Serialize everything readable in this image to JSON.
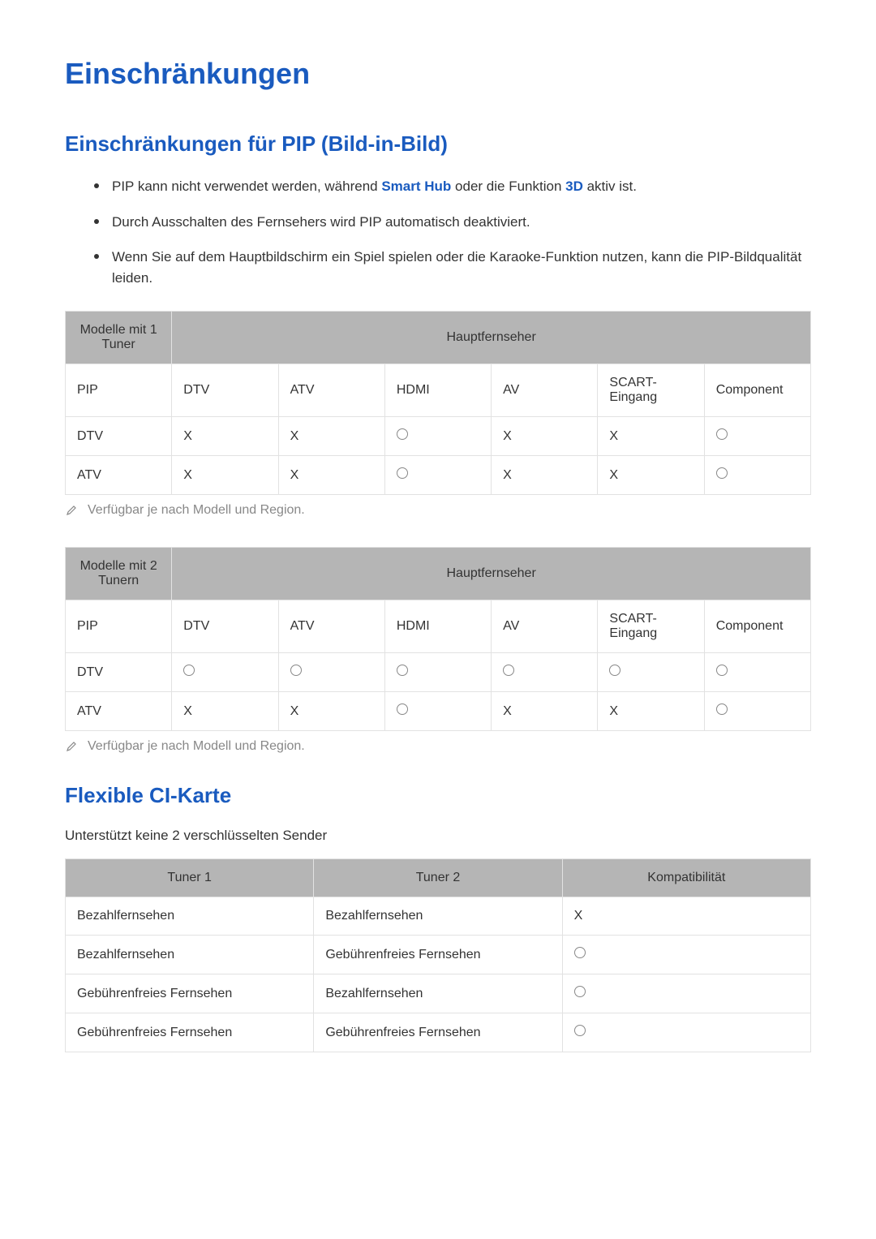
{
  "page": {
    "title": "Einschränkungen",
    "section_pip": {
      "heading": "Einschränkungen für PIP (Bild-in-Bild)",
      "bullets": [
        {
          "pre": "PIP kann nicht verwendet werden, während ",
          "b1": "Smart Hub",
          "mid": " oder die Funktion ",
          "b2": "3D",
          "post": " aktiv ist."
        },
        {
          "full": "Durch Ausschalten des Fernsehers wird PIP automatisch deaktiviert."
        },
        {
          "full": "Wenn Sie auf dem Hauptbildschirm ein Spiel spielen oder die Karaoke-Funktion nutzen, kann die PIP-Bildqualität leiden."
        }
      ],
      "table1": {
        "corner": "Modelle mit 1 Tuner",
        "span_header": "Hauptfernseher",
        "columns": [
          "PIP",
          "DTV",
          "ATV",
          "HDMI",
          "AV",
          "SCART-Eingang",
          "Component"
        ],
        "rows": [
          {
            "label": "DTV",
            "cells": [
              "X",
              "X",
              "○",
              "X",
              "X",
              "○"
            ]
          },
          {
            "label": "ATV",
            "cells": [
              "X",
              "X",
              "○",
              "X",
              "X",
              "○"
            ]
          }
        ]
      },
      "note": "Verfügbar je nach Modell und Region.",
      "table2": {
        "corner": "Modelle mit 2 Tunern",
        "span_header": "Hauptfernseher",
        "columns": [
          "PIP",
          "DTV",
          "ATV",
          "HDMI",
          "AV",
          "SCART-Eingang",
          "Component"
        ],
        "rows": [
          {
            "label": "DTV",
            "cells": [
              "○",
              "○",
              "○",
              "○",
              "○",
              "○"
            ]
          },
          {
            "label": "ATV",
            "cells": [
              "X",
              "X",
              "○",
              "X",
              "X",
              "○"
            ]
          }
        ]
      }
    },
    "section_ci": {
      "heading": "Flexible CI-Karte",
      "subtext": "Unterstützt keine 2 verschlüsselten Sender",
      "table": {
        "columns": [
          "Tuner 1",
          "Tuner 2",
          "Kompatibilität"
        ],
        "rows": [
          [
            "Bezahlfernsehen",
            "Bezahlfernsehen",
            "X"
          ],
          [
            "Bezahlfernsehen",
            "Gebührenfreies Fernsehen",
            "○"
          ],
          [
            "Gebührenfreies Fernsehen",
            "Bezahlfernsehen",
            "○"
          ],
          [
            "Gebührenfreies Fernsehen",
            "Gebührenfreies Fernsehen",
            "○"
          ]
        ]
      }
    },
    "symbols": {
      "yes": "○",
      "no": "X"
    },
    "colors": {
      "accent": "#1a5bbf",
      "header_bg": "#b5b5b5",
      "border": "#e2e2e2",
      "note": "#888888"
    }
  }
}
